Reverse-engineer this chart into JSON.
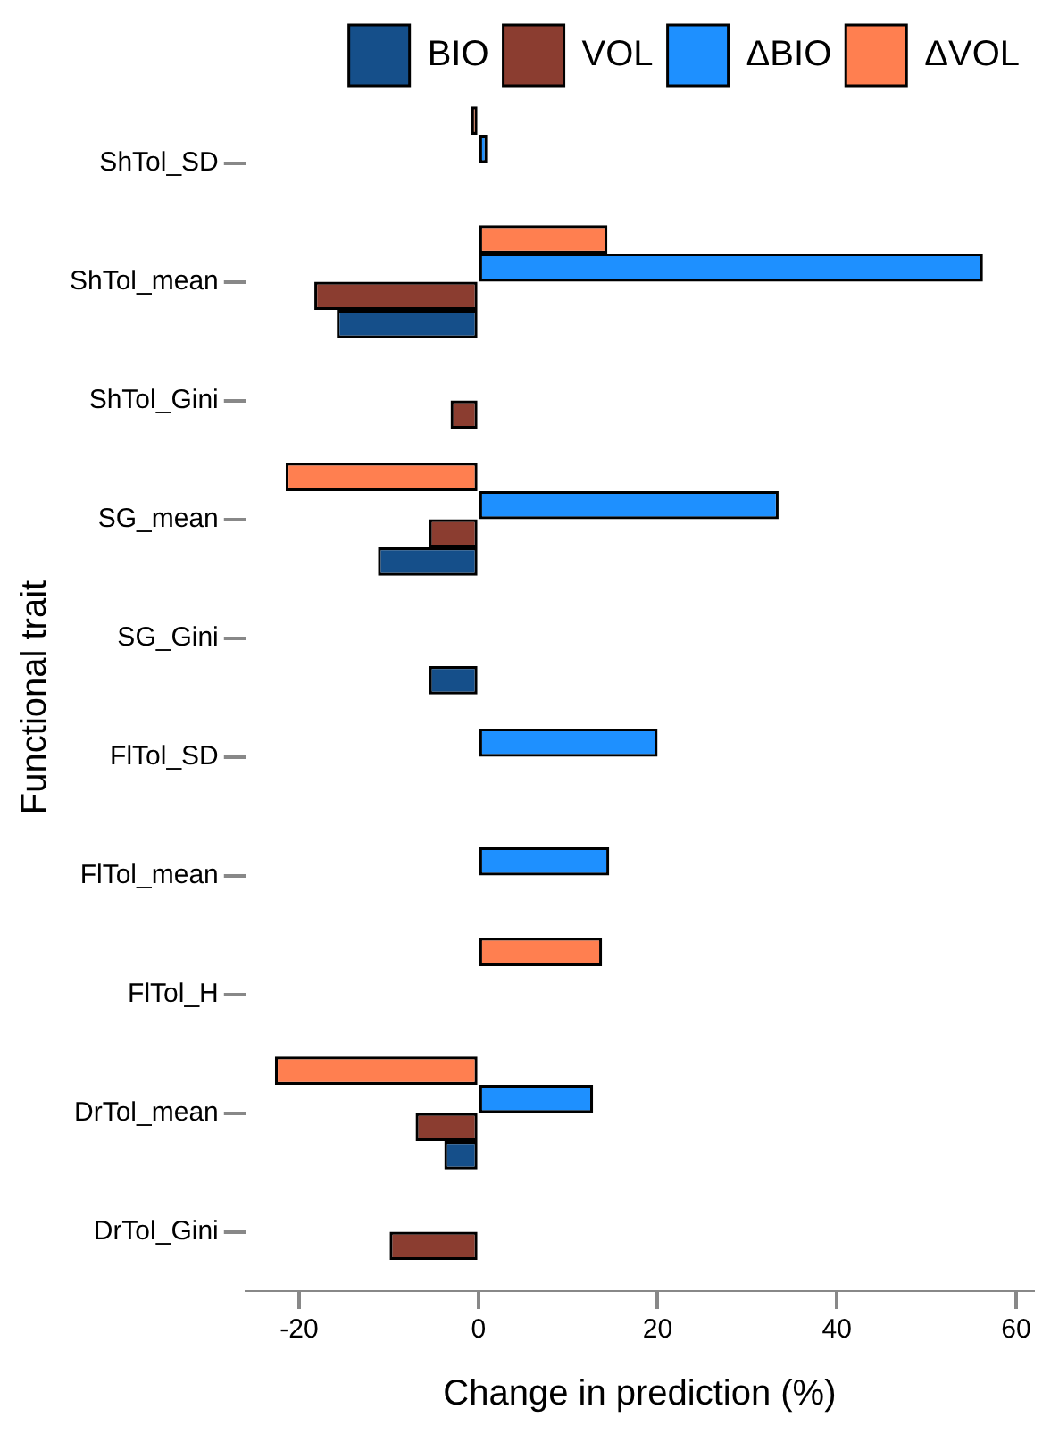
{
  "chart_data": {
    "type": "bar",
    "orientation": "horizontal",
    "xlabel": "Change in prediction (%)",
    "ylabel": "Functional trait",
    "categories": [
      "ShTol_SD",
      "ShTol_mean",
      "ShTol_Gini",
      "SG_mean",
      "SG_Gini",
      "FlTol_SD",
      "FlTol_mean",
      "FlTol_H",
      "DrTol_mean",
      "DrTol_Gini"
    ],
    "series": [
      {
        "name": "BIO",
        "color": "#154f8a",
        "values": [
          null,
          -15.8,
          null,
          -11.2,
          -5.5,
          null,
          null,
          null,
          -3.8,
          null
        ]
      },
      {
        "name": "VOL",
        "color": "#8b3d30",
        "values": [
          null,
          -18.3,
          -3.1,
          -5.5,
          null,
          null,
          null,
          null,
          -7,
          -9.9
        ]
      },
      {
        "name": "ΔBIO",
        "color": "#1e90ff",
        "values": [
          1,
          56.3,
          null,
          33.5,
          null,
          20,
          14.6,
          null,
          12.8,
          null
        ]
      },
      {
        "name": "ΔVOL",
        "color": "#ff7f50",
        "values": [
          -0.8,
          14.4,
          null,
          -21.5,
          null,
          null,
          null,
          13.8,
          -22.7,
          null
        ]
      }
    ],
    "xlim": [
      -26,
      62
    ],
    "xticks": [
      -20,
      0,
      20,
      40,
      60
    ],
    "grid": false,
    "legend": "top right"
  }
}
